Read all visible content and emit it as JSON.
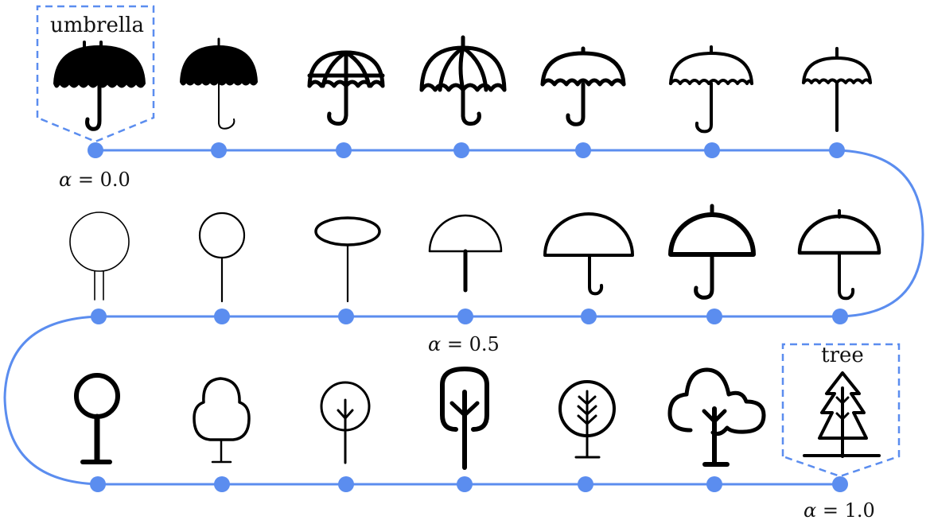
{
  "path_color": "#5b8def",
  "icon_color": "#000000",
  "start_label": "umbrella",
  "end_label": "tree",
  "alpha_labels": {
    "start": {
      "symbol": "α",
      "rest": " = 0.0"
    },
    "middle": {
      "symbol": "α",
      "rest": " = 0.5"
    },
    "end": {
      "symbol": "α",
      "rest": " = 1.0"
    }
  },
  "rows": [
    {
      "icons": [
        "umbrella-filled-icon",
        "umbrella-filled-thin-icon",
        "umbrella-ribbed-icon",
        "umbrella-ribbed-pointed-icon",
        "umbrella-scalloped-icon",
        "umbrella-scalloped-thin-icon",
        "umbrella-small-icon"
      ]
    },
    {
      "icons": [
        "tree-circle-double-trunk-icon",
        "tree-circle-icon",
        "tree-ellipse-icon",
        "umbrella-semicircle-icon",
        "umbrella-semicircle-hook-icon",
        "umbrella-semicircle-bold-icon",
        "umbrella-semicircle-tip-icon"
      ]
    },
    {
      "icons": [
        "tree-round-bold-icon",
        "tree-bushy-icon",
        "tree-round-branches-icon",
        "tree-tall-bold-icon",
        "tree-round-branches-base-icon",
        "tree-cloud-icon",
        "tree-pine-icon"
      ]
    }
  ]
}
